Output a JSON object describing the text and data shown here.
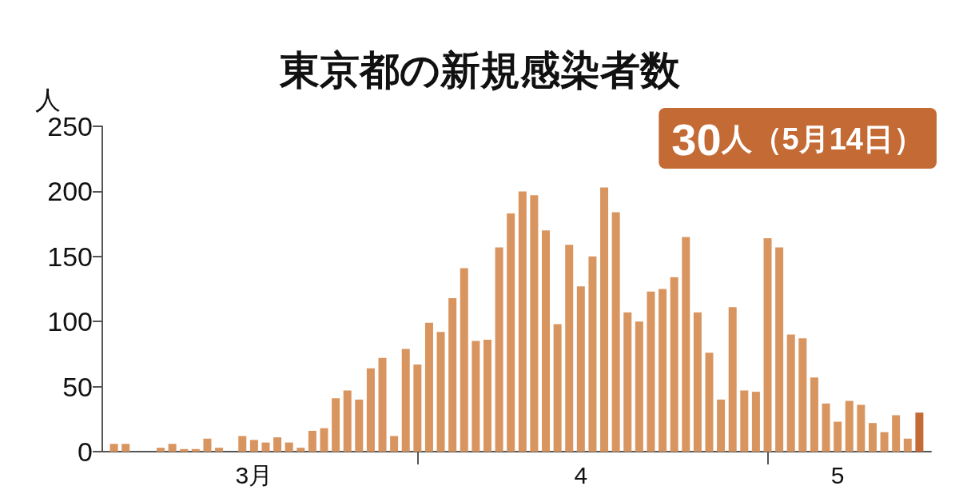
{
  "chart_data": {
    "type": "bar",
    "title": "東京都の新規感染者数",
    "ylabel": "人",
    "annotations": [
      "30人（5月14日）"
    ],
    "x": [
      "--03-06",
      "--03-07",
      "--03-08",
      "--03-09",
      "--03-10",
      "--03-11",
      "--03-12",
      "--03-13",
      "--03-14",
      "--03-15",
      "--03-16",
      "--03-17",
      "--03-18",
      "--03-19",
      "--03-20",
      "--03-21",
      "--03-22",
      "--03-23",
      "--03-24",
      "--03-25",
      "--03-26",
      "--03-27",
      "--03-28",
      "--03-29",
      "--03-30",
      "--03-31",
      "--04-01",
      "--04-02",
      "--04-03",
      "--04-04",
      "--04-05",
      "--04-06",
      "--04-07",
      "--04-08",
      "--04-09",
      "--04-10",
      "--04-11",
      "--04-12",
      "--04-13",
      "--04-14",
      "--04-15",
      "--04-16",
      "--04-17",
      "--04-18",
      "--04-19",
      "--04-20",
      "--04-21",
      "--04-22",
      "--04-23",
      "--04-24",
      "--04-25",
      "--04-26",
      "--04-27",
      "--04-28",
      "--04-29",
      "--04-30",
      "--05-01",
      "--05-02",
      "--05-03",
      "--05-04",
      "--05-05",
      "--05-06",
      "--05-07",
      "--05-08",
      "--05-09",
      "--05-10",
      "--05-11",
      "--05-12",
      "--05-13",
      "--05-14"
    ],
    "values": [
      6,
      6,
      0,
      0,
      3,
      6,
      2,
      2,
      10,
      3,
      0,
      12,
      9,
      7,
      11,
      7,
      3,
      16,
      18,
      41,
      47,
      40,
      64,
      72,
      12,
      79,
      67,
      99,
      92,
      118,
      141,
      85,
      86,
      157,
      183,
      200,
      197,
      170,
      98,
      159,
      127,
      150,
      203,
      184,
      107,
      100,
      123,
      125,
      134,
      165,
      107,
      76,
      40,
      111,
      47,
      46,
      164,
      157,
      90,
      87,
      57,
      37,
      23,
      39,
      36,
      22,
      15,
      28,
      10,
      30
    ],
    "colors": [
      "#d9955f",
      "#d9955f",
      "#d9955f",
      "#d9955f",
      "#d9955f",
      "#d9955f",
      "#d9955f",
      "#d9955f",
      "#d9955f",
      "#d9955f",
      "#d9955f",
      "#d9955f",
      "#d9955f",
      "#d9955f",
      "#d9955f",
      "#d9955f",
      "#d9955f",
      "#d9955f",
      "#d9955f",
      "#d9955f",
      "#d9955f",
      "#d9955f",
      "#d9955f",
      "#d9955f",
      "#d9955f",
      "#d9955f",
      "#d9955f",
      "#d9955f",
      "#d9955f",
      "#d9955f",
      "#d9955f",
      "#d9955f",
      "#d9955f",
      "#d9955f",
      "#d9955f",
      "#d9955f",
      "#d9955f",
      "#d9955f",
      "#d9955f",
      "#d9955f",
      "#d9955f",
      "#d9955f",
      "#d9955f",
      "#d9955f",
      "#d9955f",
      "#d9955f",
      "#d9955f",
      "#d9955f",
      "#d9955f",
      "#d9955f",
      "#d9955f",
      "#d9955f",
      "#d9955f",
      "#d9955f",
      "#d9955f",
      "#d9955f",
      "#d9955f",
      "#d9955f",
      "#d9955f",
      "#d9955f",
      "#d9955f",
      "#d9955f",
      "#d9955f",
      "#d9955f",
      "#d9955f",
      "#d9955f",
      "#d9955f",
      "#d9955f",
      "#d9955f",
      "#c46a35"
    ],
    "xlim": [
      "--03-05",
      "--05-15"
    ],
    "xticks": [
      {
        "value": "--03-18",
        "label": "3月"
      },
      {
        "value": "--04-01",
        "label": null
      },
      {
        "value": "--04-15",
        "label": "4"
      },
      {
        "value": "--05-01",
        "label": null
      },
      {
        "value": "--05-07",
        "label": "5"
      }
    ],
    "ylim": [
      0,
      250
    ],
    "yticks": [
      0,
      50,
      100,
      150,
      200,
      250
    ]
  }
}
